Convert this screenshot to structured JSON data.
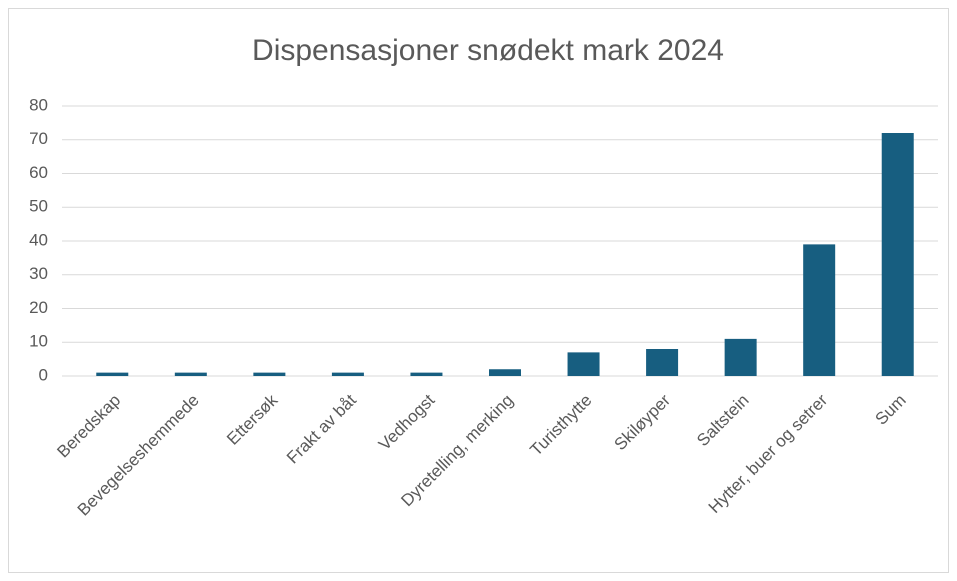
{
  "chart_data": {
    "type": "bar",
    "title": "Dispensasjoner snødekt mark 2024",
    "categories": [
      "Beredskap",
      "Bevegelseshemmede",
      "Ettersøk",
      "Frakt av båt",
      "Vedhogst",
      "Dyretelling, merking",
      "Turisthytte",
      "Skiløyper",
      "Saltstein",
      "Hytter, buer og setrer",
      "Sum"
    ],
    "values": [
      1,
      1,
      1,
      1,
      1,
      2,
      7,
      8,
      11,
      39,
      72
    ],
    "color": "#175e80",
    "ylim": [
      0,
      80
    ],
    "yticks": [
      0,
      10,
      20,
      30,
      40,
      50,
      60,
      70,
      80
    ],
    "grid": true
  }
}
